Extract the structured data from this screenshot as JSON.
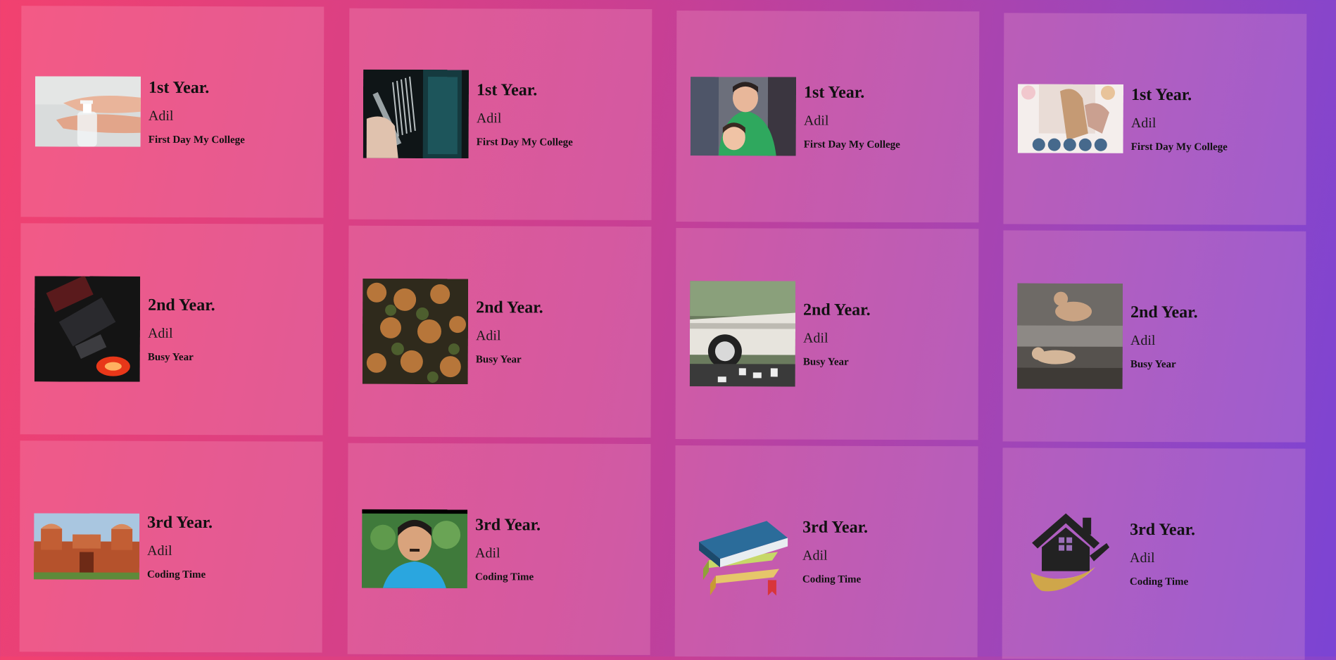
{
  "cards": [
    {
      "year": "1st Year.",
      "name": "Adil",
      "desc": "First Day My College",
      "image": "hand-sanitizer-photo"
    },
    {
      "year": "1st Year.",
      "name": "Adil",
      "desc": "First Day My College",
      "image": "comb-barber-photo"
    },
    {
      "year": "1st Year.",
      "name": "Adil",
      "desc": "First Day My College",
      "image": "barber-shop-photo"
    },
    {
      "year": "1st Year.",
      "name": "Adil",
      "desc": "First Day My College",
      "image": "salon-collage-photo"
    },
    {
      "year": "2nd Year.",
      "name": "Adil",
      "desc": "Busy Year",
      "image": "car-lights-night-photo"
    },
    {
      "year": "2nd Year.",
      "name": "Adil",
      "desc": "Busy Year",
      "image": "forest-aerial-photo"
    },
    {
      "year": "2nd Year.",
      "name": "Adil",
      "desc": "Busy Year",
      "image": "vintage-car-photo"
    },
    {
      "year": "2nd Year.",
      "name": "Adil",
      "desc": "Busy Year",
      "image": "cats-on-steps-photo"
    },
    {
      "year": "3rd Year.",
      "name": "Adil",
      "desc": "Coding Time",
      "image": "red-fort-photo"
    },
    {
      "year": "3rd Year.",
      "name": "Adil",
      "desc": "Coding Time",
      "image": "man-portrait-photo"
    },
    {
      "year": "3rd Year.",
      "name": "Adil",
      "desc": "Coding Time",
      "image": "books-stack-icon"
    },
    {
      "year": "3rd Year.",
      "name": "Adil",
      "desc": "Coding Time",
      "image": "house-paint-brush-icon"
    }
  ]
}
